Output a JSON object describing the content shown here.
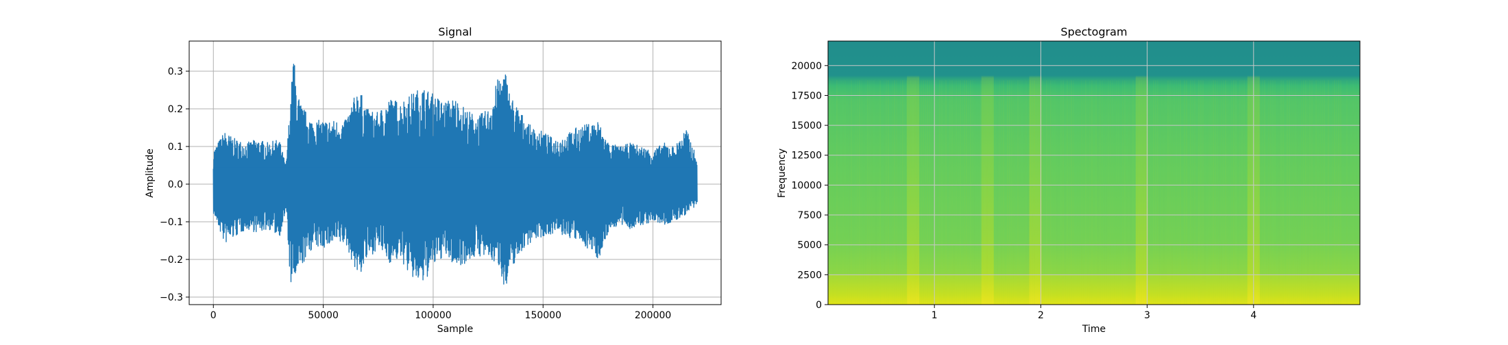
{
  "chart_data": [
    {
      "type": "line",
      "title": "Signal",
      "xlabel": "Sample",
      "ylabel": "Amplitude",
      "xlim": [
        -11000,
        231000
      ],
      "ylim": [
        -0.32,
        0.38
      ],
      "xticks": [
        0,
        50000,
        100000,
        150000,
        200000
      ],
      "xtick_labels": [
        "0",
        "50000",
        "100000",
        "150000",
        "200000"
      ],
      "yticks": [
        -0.3,
        -0.2,
        -0.1,
        0.0,
        0.1,
        0.2,
        0.3
      ],
      "ytick_labels": [
        "−0.3",
        "−0.2",
        "−0.1",
        "0.0",
        "0.1",
        "0.2",
        "0.3"
      ],
      "grid": true,
      "line_color": "#1f77b4",
      "series": [
        {
          "x": [
            0,
            5000,
            10000,
            15000,
            20000,
            25000,
            30000,
            33000,
            35000,
            36500,
            38000,
            40000,
            45000,
            50000,
            55000,
            60000,
            66000,
            70000,
            75000,
            80000,
            85000,
            90000,
            95000,
            100000,
            105000,
            110000,
            115000,
            120000,
            125000,
            130000,
            133000,
            135000,
            140000,
            145000,
            150000,
            155000,
            160000,
            165000,
            170000,
            175000,
            178000,
            180000,
            185000,
            190000,
            195000,
            200000,
            205000,
            210000,
            215000,
            220000
          ],
          "upper": [
            0.09,
            0.14,
            0.12,
            0.11,
            0.12,
            0.11,
            0.12,
            0.05,
            0.22,
            0.35,
            0.25,
            0.21,
            0.17,
            0.17,
            0.17,
            0.17,
            0.26,
            0.2,
            0.19,
            0.23,
            0.22,
            0.24,
            0.26,
            0.24,
            0.22,
            0.23,
            0.2,
            0.18,
            0.2,
            0.29,
            0.3,
            0.24,
            0.19,
            0.15,
            0.14,
            0.12,
            0.13,
            0.15,
            0.16,
            0.17,
            0.13,
            0.11,
            0.1,
            0.11,
            0.1,
            0.09,
            0.11,
            0.1,
            0.15,
            0.07
          ],
          "lower": [
            -0.08,
            -0.16,
            -0.14,
            -0.12,
            -0.13,
            -0.12,
            -0.14,
            -0.07,
            -0.27,
            -0.26,
            -0.25,
            -0.22,
            -0.17,
            -0.17,
            -0.16,
            -0.16,
            -0.25,
            -0.2,
            -0.17,
            -0.21,
            -0.2,
            -0.25,
            -0.27,
            -0.22,
            -0.19,
            -0.22,
            -0.21,
            -0.19,
            -0.2,
            -0.22,
            -0.29,
            -0.23,
            -0.18,
            -0.15,
            -0.14,
            -0.13,
            -0.14,
            -0.15,
            -0.17,
            -0.2,
            -0.16,
            -0.12,
            -0.11,
            -0.12,
            -0.11,
            -0.1,
            -0.11,
            -0.1,
            -0.08,
            -0.06
          ]
        }
      ]
    },
    {
      "type": "heatmap",
      "title": "Spectogram",
      "xlabel": "Time",
      "ylabel": "Frequency",
      "xlim": [
        0,
        5.0
      ],
      "ylim": [
        0,
        22050
      ],
      "xticks": [
        1,
        2,
        3,
        4
      ],
      "xtick_labels": [
        "1",
        "2",
        "3",
        "4"
      ],
      "yticks": [
        0,
        2500,
        5000,
        7500,
        10000,
        12500,
        15000,
        17500,
        20000
      ],
      "ytick_labels": [
        "0",
        "2500",
        "5000",
        "7500",
        "10000",
        "12500",
        "15000",
        "17500",
        "20000"
      ],
      "grid": true,
      "colormap": "viridis",
      "cutoff_frequency": 19000,
      "loud_times": [
        0.8,
        1.5,
        1.95,
        2.95,
        4.0
      ],
      "low_frequency_band": 2500
    }
  ]
}
